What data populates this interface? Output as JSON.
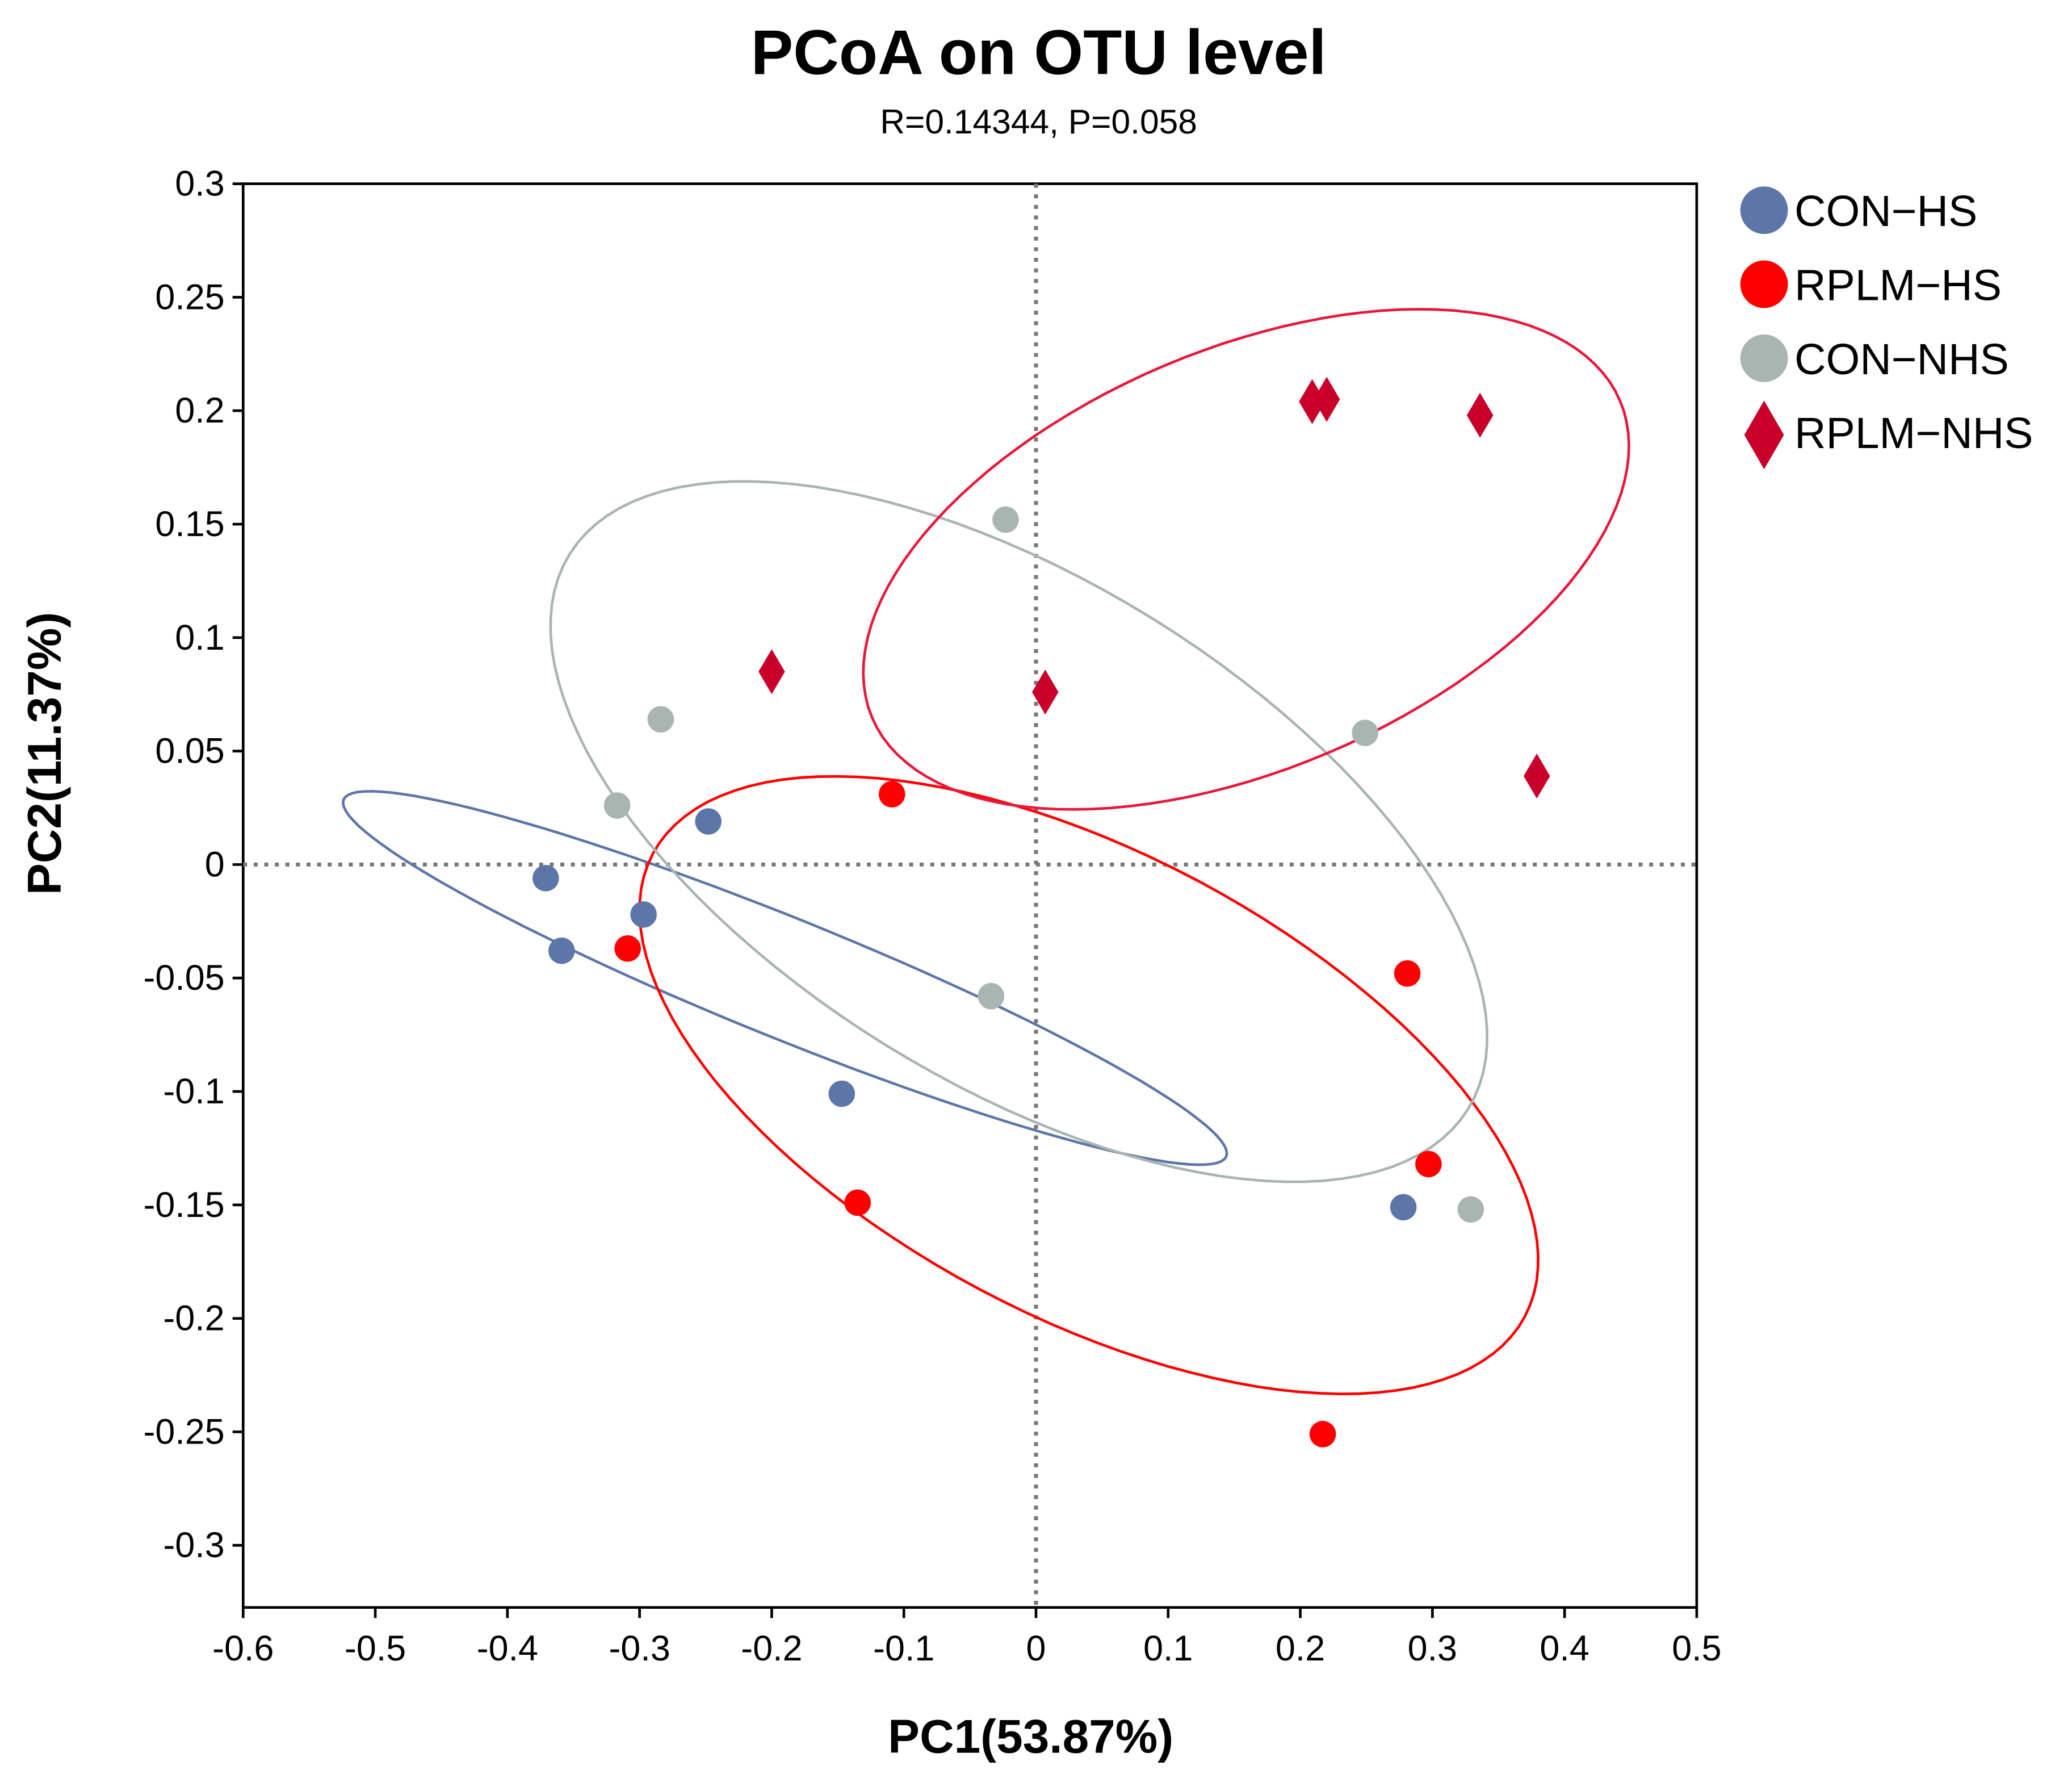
{
  "chart_data": {
    "type": "scatter",
    "title": "PCoA on OTU level",
    "subtitle": "R=0.14344, P=0.058",
    "xlabel": "PC1(53.87%)",
    "ylabel": "PC2(11.37%)",
    "xlim": [
      -0.6,
      0.5
    ],
    "ylim": [
      -0.325,
      0.3
    ],
    "xticks": [
      -0.6,
      -0.5,
      -0.4,
      -0.3,
      -0.2,
      -0.1,
      0,
      0.1,
      0.2,
      0.3,
      0.4,
      0.5
    ],
    "xtick_labels": [
      "-0.6",
      "-0.5",
      "-0.4",
      "-0.3",
      "-0.2",
      "-0.1",
      "0",
      "0.1",
      "0.2",
      "0.3",
      "0.4",
      "0.5"
    ],
    "yticks": [
      0.3,
      0.25,
      0.2,
      0.15,
      0.1,
      0.05,
      0,
      -0.05,
      -0.1,
      -0.15,
      -0.2,
      -0.25,
      -0.3
    ],
    "ytick_labels": [
      "0.3",
      "0.25",
      "0.2",
      "0.15",
      "0.1",
      "0.05",
      "0",
      "-0.05",
      "-0.1",
      "-0.15",
      "-0.2",
      "-0.25",
      "-0.3"
    ],
    "reference_lines": {
      "x": 0,
      "y": 0,
      "style": "dotted"
    },
    "legend_position": "right",
    "series": [
      {
        "name": "CON−HS",
        "color": "#5d76a9",
        "marker": "circle",
        "points": [
          [
            -0.371,
            -0.006
          ],
          [
            -0.359,
            -0.038
          ],
          [
            -0.297,
            -0.022
          ],
          [
            -0.248,
            0.019
          ],
          [
            -0.147,
            -0.101
          ],
          [
            0.278,
            -0.151
          ]
        ],
        "ellipse": {
          "center": [
            -0.19,
            -0.05
          ],
          "axis_a": [
            0.334,
            -0.0786
          ],
          "axis_b": [
            -0.017,
            -0.0244
          ]
        }
      },
      {
        "name": "RPLM−HS",
        "color": "#ff0000",
        "marker": "circle",
        "points": [
          [
            -0.109,
            0.031
          ],
          [
            -0.309,
            -0.037
          ],
          [
            -0.135,
            -0.149
          ],
          [
            0.281,
            -0.048
          ],
          [
            0.297,
            -0.132
          ],
          [
            0.217,
            -0.251
          ]
        ],
        "ellipse": {
          "center": [
            0.04,
            -0.0972
          ],
          "axis_a": [
            0.33,
            -0.1019
          ],
          "axis_b": [
            -0.082,
            -0.0902
          ]
        }
      },
      {
        "name": "CON−NHS",
        "color": "#a9b5b1",
        "marker": "circle",
        "points": [
          [
            -0.023,
            0.152
          ],
          [
            -0.284,
            0.064
          ],
          [
            -0.317,
            0.026
          ],
          [
            -0.034,
            -0.058
          ],
          [
            0.249,
            0.058
          ],
          [
            0.329,
            -0.152
          ]
        ],
        "ellipse": {
          "center": [
            -0.013,
            0.0145
          ],
          "axis_a": [
            0.34,
            -0.1222
          ],
          "axis_b": [
            -0.1,
            -0.0943
          ]
        }
      },
      {
        "name": "RPLM−NHS",
        "color": "#c8002a",
        "marker": "diamond",
        "points": [
          [
            0.209,
            0.204
          ],
          [
            0.22,
            0.205
          ],
          [
            0.336,
            0.198
          ],
          [
            -0.2,
            0.085
          ],
          [
            0.007,
            0.076
          ],
          [
            0.379,
            0.039
          ]
        ],
        "ellipse": {
          "center": [
            0.159,
            0.1345
          ],
          "axis_a": [
            0.283,
            0.0698
          ],
          "axis_b": [
            0.062,
            -0.0853
          ]
        },
        "ellipse_color": "#e8183c"
      }
    ]
  }
}
